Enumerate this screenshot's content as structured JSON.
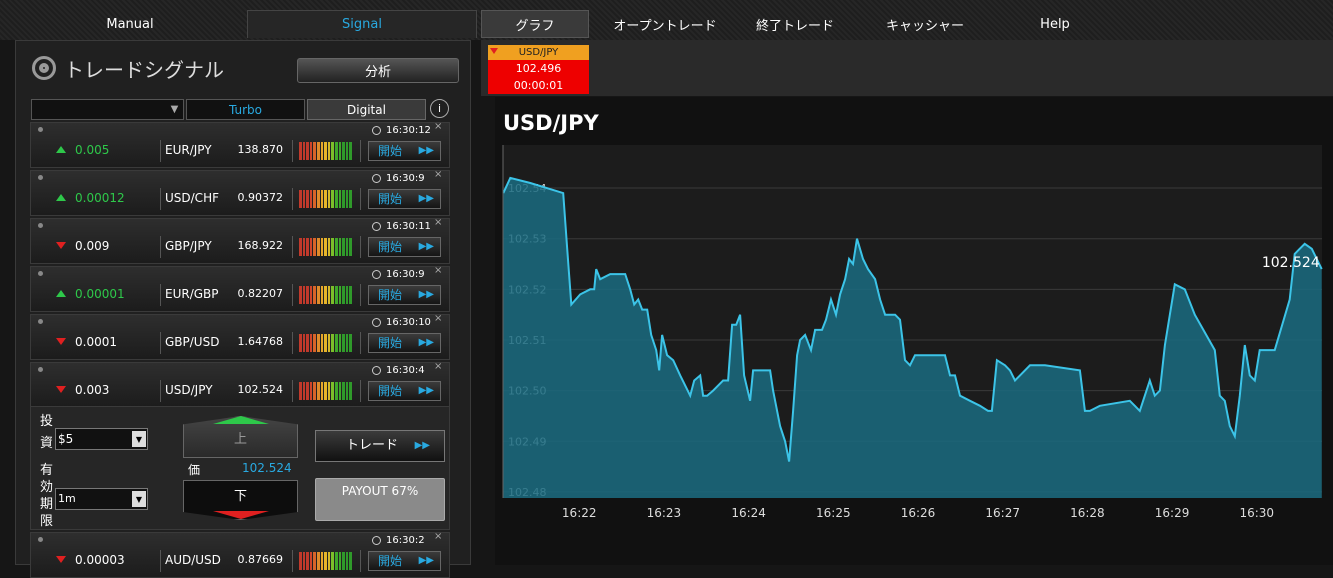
{
  "nav": [
    "Manual",
    "Signal",
    "グラフ",
    "オープントレード",
    "終了トレード",
    "キャッシャー",
    "Help"
  ],
  "panel": {
    "title": "トレードシグナル",
    "analyze_button": "分析",
    "filters": [
      "Turbo",
      "Digital"
    ]
  },
  "signals": [
    {
      "direction": "up",
      "change": "0.005",
      "pair": "EUR/JPY",
      "price": "138.870",
      "time": "16:30:12",
      "button": "開始"
    },
    {
      "direction": "up",
      "change": "0.00012",
      "pair": "USD/CHF",
      "price": "0.90372",
      "time": "16:30:9",
      "button": "開始"
    },
    {
      "direction": "down",
      "change": "0.009",
      "pair": "GBP/JPY",
      "price": "168.922",
      "time": "16:30:11",
      "button": "開始"
    },
    {
      "direction": "up",
      "change": "0.00001",
      "pair": "EUR/GBP",
      "price": "0.82207",
      "time": "16:30:9",
      "button": "開始"
    },
    {
      "direction": "down",
      "change": "0.0001",
      "pair": "GBP/USD",
      "price": "1.64768",
      "time": "16:30:10",
      "button": "開始"
    },
    {
      "direction": "down",
      "change": "0.003",
      "pair": "USD/JPY",
      "price": "102.524",
      "time": "16:30:4",
      "button": "開始"
    },
    {
      "direction": "down",
      "change": "0.00003",
      "pair": "AUD/USD",
      "price": "0.87669",
      "time": "16:30:2",
      "button": "開始"
    }
  ],
  "trade": {
    "invest_label": "投資",
    "amount": "$5",
    "expiry_label": "有効期限",
    "expiry": "1m",
    "up_button": "上",
    "price_label": "価",
    "price": "102.524",
    "down_button": "下",
    "trade_button": "トレード",
    "payout": "PAYOUT 67%"
  },
  "ticker": {
    "pair": "USD/JPY",
    "price": "102.496",
    "timer": "00:00:01"
  },
  "chart_data": {
    "type": "area",
    "title": "USD/JPY",
    "annotation": "102.524",
    "color": "#3cc4e8",
    "fill": "#1a6b80",
    "grid": true,
    "x": [
      981.103,
      981.186,
      981.422,
      981.811,
      981.858,
      981.906,
      982.012,
      982.13,
      982.177,
      982.201,
      982.248,
      982.366,
      982.543,
      982.602,
      982.649,
      982.696,
      982.743,
      982.802,
      982.85,
      982.909,
      982.944,
      982.979,
      983.038,
      983.109,
      983.192,
      983.31,
      983.357,
      983.428,
      983.463,
      983.51,
      983.581,
      983.64,
      983.699,
      983.758,
      983.805,
      983.853,
      983.9,
      983.947,
      984.018,
      984.053,
      984.254,
      984.289,
      984.372,
      984.431,
      984.478,
      984.525,
      984.572,
      984.608,
      984.667,
      984.737,
      984.785,
      984.867,
      984.914,
      984.973,
      985.032,
      985.08,
      985.139,
      985.186,
      985.233,
      985.28,
      985.351,
      985.41,
      985.493,
      985.552,
      985.611,
      985.729,
      985.788,
      985.847,
      985.906,
      985.965,
      986.319,
      986.378,
      986.437,
      986.496,
      986.614,
      986.732,
      986.826,
      986.873,
      986.932,
      987.027,
      987.086,
      987.145,
      987.204,
      987.322,
      987.499,
      987.912,
      987.971,
      988.029,
      988.147,
      988.501,
      988.56,
      988.619,
      988.737,
      988.796,
      988.856,
      988.915,
      989.032,
      989.15,
      989.268,
      989.504,
      989.563,
      989.622,
      989.681,
      989.74,
      989.799,
      989.858,
      989.917,
      989.976,
      990.035,
      990.212,
      990.389,
      990.448,
      990.507,
      990.566,
      990.649,
      990.767
    ],
    "values": [
      102.539,
      102.542,
      102.541,
      102.539,
      102.528,
      102.517,
      102.519,
      102.52,
      102.52,
      102.524,
      102.522,
      102.523,
      102.523,
      102.52,
      102.517,
      102.518,
      102.516,
      102.516,
      102.511,
      102.508,
      102.504,
      102.511,
      102.507,
      102.506,
      102.503,
      102.499,
      102.502,
      102.503,
      102.499,
      102.499,
      102.5,
      102.501,
      102.502,
      102.502,
      102.513,
      102.513,
      102.515,
      102.503,
      102.498,
      102.504,
      102.504,
      102.5,
      102.493,
      102.49,
      102.486,
      102.496,
      102.507,
      102.51,
      102.511,
      102.508,
      102.512,
      102.512,
      102.514,
      102.518,
      102.515,
      102.519,
      102.522,
      102.526,
      102.525,
      102.53,
      102.526,
      102.524,
      102.522,
      102.518,
      102.515,
      102.515,
      102.514,
      102.506,
      102.505,
      102.507,
      102.507,
      102.503,
      102.503,
      102.499,
      102.498,
      102.497,
      102.496,
      102.496,
      102.506,
      102.505,
      102.504,
      102.502,
      102.503,
      102.505,
      102.505,
      102.504,
      102.496,
      102.496,
      102.497,
      102.498,
      102.497,
      102.496,
      102.502,
      102.499,
      102.5,
      102.509,
      102.521,
      102.52,
      102.515,
      102.508,
      102.499,
      102.498,
      102.493,
      102.491,
      102.499,
      102.509,
      102.503,
      102.502,
      102.508,
      102.508,
      102.518,
      102.527,
      102.528,
      102.529,
      102.528,
      102.524
    ],
    "xlim": [
      981.1,
      990.77
    ],
    "ylim": [
      102.4788,
      102.5485
    ],
    "xticks": [
      {
        "value": 982,
        "label": "16:22"
      },
      {
        "value": 983,
        "label": "16:23"
      },
      {
        "value": 984,
        "label": "16:24"
      },
      {
        "value": 985,
        "label": "16:25"
      },
      {
        "value": 986,
        "label": "16:26"
      },
      {
        "value": 987,
        "label": "16:27"
      },
      {
        "value": 988,
        "label": "16:28"
      },
      {
        "value": 989,
        "label": "16:29"
      },
      {
        "value": 990,
        "label": "16:30"
      }
    ],
    "yticks": [
      102.48,
      102.49,
      {
        "value": 102.5,
        "label": "102.50"
      },
      102.51,
      102.52,
      102.53,
      102.54
    ]
  }
}
